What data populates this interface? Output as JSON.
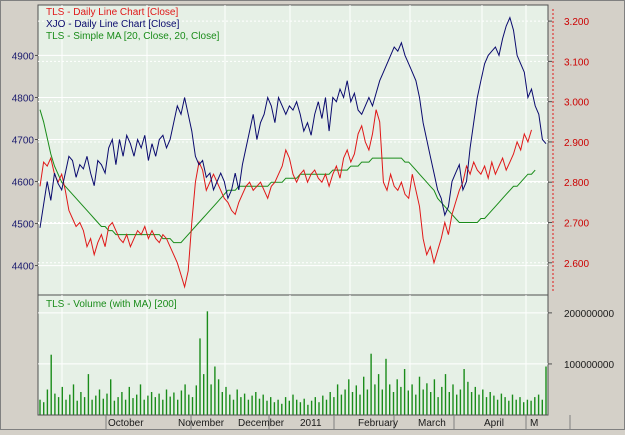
{
  "colors": {
    "frame_bg": "#d4d0c8",
    "plot_bg": "#e6f0e6",
    "grid": "#ffffff",
    "xjo": "#0a0a6e",
    "tls": "#e01818",
    "ma": "#1a8c1a",
    "volume": "#1a8c1a",
    "axis_text_left": "#1a1a6e",
    "axis_text_right": "#cc0000"
  },
  "legend": {
    "tls_line": "TLS - Daily Line Chart [Close]",
    "xjo_line": "XJO - Daily Line Chart [Close]",
    "tls_ma": "TLS - Simple MA [20, Close, 20, Close]",
    "volume": "TLS - Volume (with MA) [200]"
  },
  "chart_data": [
    {
      "type": "line",
      "x_labels": [
        "October",
        "November",
        "December",
        "2011",
        "February",
        "March",
        "April",
        "M"
      ],
      "y_left": {
        "series": "XJO",
        "ticks": [
          4400,
          4500,
          4600,
          4700,
          4800,
          4900
        ],
        "ylim": [
          4330,
          5020
        ]
      },
      "y_right": {
        "series": "TLS",
        "ticks": [
          "2.600",
          "2.700",
          "2.800",
          "2.900",
          "3.000",
          "3.100",
          "3.200"
        ],
        "tick_values": [
          2.6,
          2.7,
          2.8,
          2.9,
          3.0,
          3.1,
          3.2
        ],
        "ylim": [
          2.52,
          3.24
        ]
      },
      "grid": true,
      "series": [
        {
          "name": "XJO - Daily Line Chart [Close]",
          "axis": "left",
          "values": [
            4490,
            4545,
            4600,
            4555,
            4620,
            4595,
            4580,
            4620,
            4660,
            4650,
            4610,
            4640,
            4630,
            4660,
            4620,
            4590,
            4650,
            4640,
            4620,
            4680,
            4700,
            4640,
            4700,
            4660,
            4710,
            4690,
            4660,
            4700,
            4680,
            4710,
            4650,
            4690,
            4660,
            4700,
            4710,
            4680,
            4700,
            4740,
            4780,
            4760,
            4800,
            4760,
            4720,
            4660,
            4640,
            4650,
            4610,
            4620,
            4580,
            4600,
            4620,
            4600,
            4560,
            4580,
            4620,
            4580,
            4640,
            4680,
            4720,
            4760,
            4700,
            4740,
            4760,
            4800,
            4780,
            4740,
            4800,
            4780,
            4760,
            4780,
            4770,
            4790,
            4760,
            4720,
            4740,
            4710,
            4760,
            4790,
            4750,
            4800,
            4720,
            4800,
            4790,
            4820,
            4800,
            4840,
            4790,
            4810,
            4770,
            4760,
            4780,
            4800,
            4780,
            4810,
            4840,
            4860,
            4880,
            4900,
            4920,
            4910,
            4930,
            4900,
            4880,
            4860,
            4840,
            4800,
            4740,
            4700,
            4660,
            4620,
            4580,
            4560,
            4520,
            4540,
            4600,
            4620,
            4640,
            4580,
            4600,
            4680,
            4740,
            4800,
            4840,
            4880,
            4900,
            4910,
            4920,
            4900,
            4940,
            4970,
            4990,
            4960,
            4900,
            4880,
            4860,
            4800,
            4820,
            4780,
            4760,
            4700,
            4690
          ]
        },
        {
          "name": "TLS - Daily Line Chart [Close]",
          "axis": "right",
          "values": [
            2.79,
            2.85,
            2.84,
            2.86,
            2.82,
            2.8,
            2.82,
            2.78,
            2.73,
            2.71,
            2.69,
            2.7,
            2.68,
            2.64,
            2.66,
            2.62,
            2.65,
            2.67,
            2.64,
            2.69,
            2.7,
            2.68,
            2.66,
            2.65,
            2.67,
            2.64,
            2.66,
            2.68,
            2.67,
            2.69,
            2.66,
            2.68,
            2.66,
            2.65,
            2.67,
            2.66,
            2.64,
            2.62,
            2.6,
            2.57,
            2.54,
            2.58,
            2.7,
            2.8,
            2.85,
            2.83,
            2.78,
            2.8,
            2.82,
            2.8,
            2.78,
            2.76,
            2.75,
            2.73,
            2.72,
            2.75,
            2.77,
            2.79,
            2.8,
            2.78,
            2.79,
            2.8,
            2.78,
            2.76,
            2.79,
            2.8,
            2.82,
            2.84,
            2.88,
            2.86,
            2.82,
            2.8,
            2.82,
            2.83,
            2.8,
            2.82,
            2.83,
            2.81,
            2.8,
            2.82,
            2.79,
            2.82,
            2.84,
            2.81,
            2.86,
            2.88,
            2.85,
            2.87,
            2.92,
            2.94,
            2.9,
            2.88,
            2.92,
            2.98,
            2.95,
            2.8,
            2.78,
            2.82,
            2.79,
            2.78,
            2.8,
            2.77,
            2.76,
            2.82,
            2.78,
            2.74,
            2.66,
            2.62,
            2.64,
            2.6,
            2.63,
            2.66,
            2.7,
            2.67,
            2.72,
            2.75,
            2.78,
            2.8,
            2.84,
            2.82,
            2.85,
            2.83,
            2.82,
            2.84,
            2.81,
            2.85,
            2.82,
            2.84,
            2.86,
            2.83,
            2.85,
            2.87,
            2.9,
            2.88,
            2.92,
            2.9,
            2.93
          ]
        },
        {
          "name": "TLS - Simple MA [20, Close, 20, Close]",
          "axis": "right",
          "values": [
            2.98,
            2.95,
            2.91,
            2.87,
            2.84,
            2.82,
            2.8,
            2.79,
            2.78,
            2.77,
            2.76,
            2.75,
            2.74,
            2.73,
            2.72,
            2.71,
            2.7,
            2.69,
            2.69,
            2.68,
            2.68,
            2.67,
            2.67,
            2.67,
            2.67,
            2.67,
            2.67,
            2.67,
            2.67,
            2.67,
            2.67,
            2.67,
            2.67,
            2.67,
            2.66,
            2.66,
            2.66,
            2.65,
            2.65,
            2.65,
            2.66,
            2.67,
            2.68,
            2.69,
            2.7,
            2.71,
            2.72,
            2.73,
            2.74,
            2.75,
            2.76,
            2.77,
            2.78,
            2.78,
            2.78,
            2.79,
            2.79,
            2.79,
            2.79,
            2.79,
            2.79,
            2.79,
            2.79,
            2.79,
            2.8,
            2.8,
            2.8,
            2.8,
            2.81,
            2.81,
            2.81,
            2.81,
            2.82,
            2.82,
            2.82,
            2.82,
            2.82,
            2.82,
            2.82,
            2.82,
            2.82,
            2.83,
            2.83,
            2.83,
            2.83,
            2.83,
            2.84,
            2.84,
            2.84,
            2.85,
            2.85,
            2.85,
            2.86,
            2.86,
            2.86,
            2.86,
            2.86,
            2.86,
            2.86,
            2.86,
            2.86,
            2.85,
            2.85,
            2.84,
            2.83,
            2.82,
            2.81,
            2.8,
            2.79,
            2.78,
            2.76,
            2.75,
            2.74,
            2.73,
            2.72,
            2.71,
            2.7,
            2.7,
            2.7,
            2.7,
            2.7,
            2.7,
            2.71,
            2.71,
            2.72,
            2.73,
            2.74,
            2.75,
            2.76,
            2.77,
            2.78,
            2.79,
            2.79,
            2.8,
            2.81,
            2.82,
            2.82,
            2.83
          ]
        }
      ]
    },
    {
      "type": "bar",
      "title": "TLS - Volume (with MA) [200]",
      "y_ticks": [
        "100000000",
        "200000000"
      ],
      "y_tick_values": [
        100000000,
        200000000
      ],
      "ylim": [
        0,
        235000000
      ],
      "grid": true,
      "series": [
        {
          "name": "TLS - Volume (with MA) [200]",
          "values": [
            30000000,
            25000000,
            50000000,
            118000000,
            42000000,
            35000000,
            55000000,
            30000000,
            40000000,
            60000000,
            28000000,
            45000000,
            35000000,
            80000000,
            30000000,
            38000000,
            50000000,
            32000000,
            42000000,
            70000000,
            28000000,
            35000000,
            45000000,
            30000000,
            55000000,
            33000000,
            40000000,
            60000000,
            30000000,
            38000000,
            45000000,
            35000000,
            42000000,
            30000000,
            50000000,
            36000000,
            44000000,
            30000000,
            48000000,
            60000000,
            40000000,
            35000000,
            58000000,
            150000000,
            80000000,
            203000000,
            60000000,
            95000000,
            70000000,
            45000000,
            55000000,
            40000000,
            30000000,
            50000000,
            35000000,
            42000000,
            30000000,
            38000000,
            45000000,
            32000000,
            40000000,
            28000000,
            35000000,
            25000000,
            30000000,
            22000000,
            35000000,
            28000000,
            40000000,
            30000000,
            25000000,
            32000000,
            20000000,
            28000000,
            35000000,
            25000000,
            38000000,
            30000000,
            45000000,
            35000000,
            60000000,
            40000000,
            50000000,
            70000000,
            45000000,
            58000000,
            40000000,
            75000000,
            50000000,
            120000000,
            60000000,
            80000000,
            50000000,
            110000000,
            60000000,
            45000000,
            70000000,
            55000000,
            90000000,
            48000000,
            60000000,
            40000000,
            75000000,
            50000000,
            62000000,
            45000000,
            70000000,
            35000000,
            55000000,
            80000000,
            45000000,
            60000000,
            40000000,
            50000000,
            90000000,
            65000000,
            45000000,
            55000000,
            40000000,
            50000000,
            35000000,
            45000000,
            38000000,
            30000000,
            42000000,
            35000000,
            28000000,
            40000000,
            30000000,
            35000000,
            25000000,
            30000000,
            28000000,
            35000000,
            40000000,
            30000000,
            95000000
          ]
        }
      ]
    }
  ]
}
